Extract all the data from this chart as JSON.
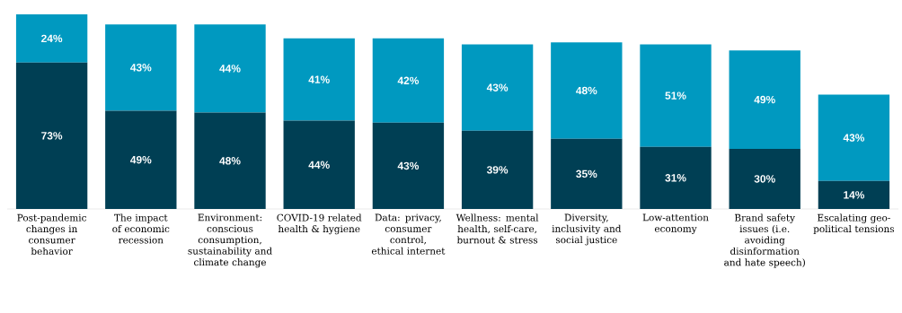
{
  "chart_data": {
    "type": "bar",
    "stacked": true,
    "categories": [
      "Post-pandemic changes in consumer behavior",
      "The impact of economic recession",
      "Environment: conscious consumption, sustainability and climate change",
      "COVID-19 related health & hygiene",
      "Data: privacy, consumer control, ethical internet",
      "Wellness: mental health, self-care, burnout & stress",
      "Diversity, inclusivity and social justice",
      "Low-attention economy",
      "Brand safety issues (i.e. avoiding disinformation and hate speech)",
      "Escalating geo-political tensions"
    ],
    "series": [
      {
        "color": "#003f54",
        "values": [
          73,
          49,
          48,
          44,
          43,
          39,
          35,
          31,
          30,
          14
        ],
        "value_labels": [
          "73%",
          "49%",
          "48%",
          "44%",
          "43%",
          "39%",
          "35%",
          "31%",
          "30%",
          "14%"
        ]
      },
      {
        "color": "#0099c0",
        "values": [
          24,
          43,
          44,
          41,
          42,
          43,
          48,
          51,
          49,
          43
        ],
        "value_labels": [
          "24%",
          "43%",
          "44%",
          "41%",
          "42%",
          "43%",
          "48%",
          "51%",
          "49%",
          "43%"
        ]
      }
    ]
  }
}
